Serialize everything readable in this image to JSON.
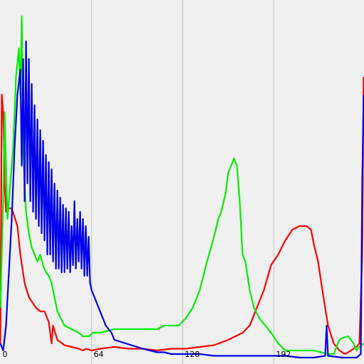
{
  "chart_data": {
    "type": "line",
    "title": "",
    "xlabel": "",
    "ylabel": "",
    "xlim": [
      0,
      255
    ],
    "ylim": [
      0,
      1
    ],
    "grid": true,
    "legend": "none",
    "x_ticks": [
      {
        "value": 0,
        "label": "0"
      },
      {
        "value": 64,
        "label": "64"
      },
      {
        "value": 128,
        "label": "128"
      },
      {
        "value": 192,
        "label": "192"
      }
    ],
    "series": [
      {
        "color": "#ff0000",
        "points": [
          [
            0,
            0.05
          ],
          [
            1,
            0.75
          ],
          [
            2,
            0.7
          ],
          [
            3,
            0.5
          ],
          [
            4,
            0.42
          ],
          [
            6,
            0.43
          ],
          [
            8,
            0.43
          ],
          [
            12,
            0.38
          ],
          [
            14,
            0.3
          ],
          [
            17,
            0.22
          ],
          [
            20,
            0.18
          ],
          [
            25,
            0.15
          ],
          [
            28,
            0.14
          ],
          [
            31,
            0.14
          ],
          [
            34,
            0.11
          ],
          [
            36,
            0.05
          ],
          [
            37,
            0.1
          ],
          [
            40,
            0.06
          ],
          [
            45,
            0.045
          ],
          [
            50,
            0.04
          ],
          [
            55,
            0.035
          ],
          [
            58,
            0.03
          ],
          [
            60,
            0.035
          ],
          [
            64,
            0.03
          ],
          [
            70,
            0.035
          ],
          [
            80,
            0.04
          ],
          [
            90,
            0.035
          ],
          [
            100,
            0.035
          ],
          [
            110,
            0.03
          ],
          [
            120,
            0.035
          ],
          [
            130,
            0.035
          ],
          [
            140,
            0.04
          ],
          [
            150,
            0.045
          ],
          [
            160,
            0.06
          ],
          [
            170,
            0.08
          ],
          [
            175,
            0.1
          ],
          [
            180,
            0.15
          ],
          [
            185,
            0.2
          ],
          [
            190,
            0.27
          ],
          [
            195,
            0.3
          ],
          [
            200,
            0.34
          ],
          [
            205,
            0.37
          ],
          [
            210,
            0.38
          ],
          [
            215,
            0.38
          ],
          [
            218,
            0.37
          ],
          [
            220,
            0.33
          ],
          [
            223,
            0.28
          ],
          [
            226,
            0.2
          ],
          [
            228,
            0.15
          ],
          [
            230,
            0.1
          ],
          [
            234,
            0.05
          ],
          [
            238,
            0.03
          ],
          [
            242,
            0.02
          ],
          [
            246,
            0.03
          ],
          [
            250,
            0.04
          ],
          [
            252,
            0.05
          ],
          [
            254,
            0.3
          ],
          [
            255,
            0.8
          ]
        ]
      },
      {
        "color": "#00ee00",
        "points": [
          [
            0,
            0.15
          ],
          [
            1,
            0.3
          ],
          [
            2,
            0.45
          ],
          [
            3,
            0.7
          ],
          [
            4,
            0.55
          ],
          [
            5,
            0.4
          ],
          [
            7,
            0.5
          ],
          [
            9,
            0.6
          ],
          [
            11,
            0.8
          ],
          [
            13,
            0.88
          ],
          [
            14,
            0.75
          ],
          [
            15,
            0.97
          ],
          [
            16,
            0.6
          ],
          [
            17,
            0.5
          ],
          [
            18,
            0.42
          ],
          [
            20,
            0.36
          ],
          [
            22,
            0.32
          ],
          [
            24,
            0.3
          ],
          [
            26,
            0.28
          ],
          [
            28,
            0.3
          ],
          [
            30,
            0.27
          ],
          [
            32,
            0.25
          ],
          [
            34,
            0.24
          ],
          [
            36,
            0.22
          ],
          [
            38,
            0.18
          ],
          [
            40,
            0.14
          ],
          [
            45,
            0.1
          ],
          [
            50,
            0.09
          ],
          [
            55,
            0.08
          ],
          [
            58,
            0.07
          ],
          [
            62,
            0.07
          ],
          [
            65,
            0.08
          ],
          [
            70,
            0.08
          ],
          [
            80,
            0.09
          ],
          [
            90,
            0.09
          ],
          [
            100,
            0.09
          ],
          [
            110,
            0.09
          ],
          [
            115,
            0.1
          ],
          [
            120,
            0.1
          ],
          [
            125,
            0.1
          ],
          [
            130,
            0.12
          ],
          [
            135,
            0.15
          ],
          [
            140,
            0.2
          ],
          [
            145,
            0.28
          ],
          [
            150,
            0.35
          ],
          [
            153,
            0.4
          ],
          [
            155,
            0.42
          ],
          [
            158,
            0.47
          ],
          [
            160,
            0.53
          ],
          [
            162,
            0.55
          ],
          [
            164,
            0.57
          ],
          [
            166,
            0.55
          ],
          [
            168,
            0.45
          ],
          [
            170,
            0.3
          ],
          [
            172,
            0.28
          ],
          [
            175,
            0.2
          ],
          [
            178,
            0.15
          ],
          [
            182,
            0.12
          ],
          [
            186,
            0.1
          ],
          [
            190,
            0.08
          ],
          [
            195,
            0.05
          ],
          [
            200,
            0.03
          ],
          [
            210,
            0.03
          ],
          [
            220,
            0.03
          ],
          [
            230,
            0.02
          ],
          [
            234,
            0.02
          ],
          [
            238,
            0.06
          ],
          [
            240,
            0.065
          ],
          [
            244,
            0.07
          ],
          [
            248,
            0.05
          ],
          [
            250,
            0.03
          ],
          [
            252,
            0.04
          ],
          [
            255,
            0.05
          ]
        ]
      },
      {
        "color": "#0000ee",
        "points": [
          [
            0,
            0.05
          ],
          [
            2,
            0.03
          ],
          [
            4,
            0.1
          ],
          [
            6,
            0.25
          ],
          [
            8,
            0.4
          ],
          [
            10,
            0.6
          ],
          [
            12,
            0.75
          ],
          [
            14,
            0.82
          ],
          [
            15,
            0.55
          ],
          [
            16,
            0.85
          ],
          [
            17,
            0.45
          ],
          [
            18,
            0.9
          ],
          [
            19,
            0.5
          ],
          [
            20,
            0.85
          ],
          [
            21,
            0.45
          ],
          [
            22,
            0.78
          ],
          [
            23,
            0.42
          ],
          [
            24,
            0.72
          ],
          [
            25,
            0.4
          ],
          [
            26,
            0.68
          ],
          [
            27,
            0.38
          ],
          [
            28,
            0.65
          ],
          [
            29,
            0.36
          ],
          [
            30,
            0.62
          ],
          [
            31,
            0.34
          ],
          [
            32,
            0.58
          ],
          [
            33,
            0.3
          ],
          [
            34,
            0.56
          ],
          [
            35,
            0.3
          ],
          [
            36,
            0.54
          ],
          [
            37,
            0.28
          ],
          [
            38,
            0.5
          ],
          [
            39,
            0.26
          ],
          [
            40,
            0.48
          ],
          [
            41,
            0.26
          ],
          [
            42,
            0.46
          ],
          [
            43,
            0.25
          ],
          [
            44,
            0.44
          ],
          [
            45,
            0.25
          ],
          [
            46,
            0.43
          ],
          [
            47,
            0.26
          ],
          [
            48,
            0.42
          ],
          [
            49,
            0.25
          ],
          [
            50,
            0.38
          ],
          [
            51,
            0.27
          ],
          [
            52,
            0.45
          ],
          [
            53,
            0.26
          ],
          [
            54,
            0.4
          ],
          [
            55,
            0.28
          ],
          [
            56,
            0.42
          ],
          [
            57,
            0.26
          ],
          [
            58,
            0.4
          ],
          [
            59,
            0.24
          ],
          [
            60,
            0.38
          ],
          [
            61,
            0.24
          ],
          [
            62,
            0.35
          ],
          [
            63,
            0.22
          ],
          [
            64,
            0.2
          ],
          [
            66,
            0.18
          ],
          [
            68,
            0.16
          ],
          [
            70,
            0.14
          ],
          [
            72,
            0.12
          ],
          [
            74,
            0.1
          ],
          [
            76,
            0.09
          ],
          [
            78,
            0.08
          ],
          [
            80,
            0.06
          ],
          [
            84,
            0.055
          ],
          [
            88,
            0.05
          ],
          [
            92,
            0.045
          ],
          [
            96,
            0.04
          ],
          [
            100,
            0.035
          ],
          [
            105,
            0.03
          ],
          [
            110,
            0.025
          ],
          [
            115,
            0.025
          ],
          [
            120,
            0.02
          ],
          [
            125,
            0.02
          ],
          [
            130,
            0.02
          ],
          [
            140,
            0.02
          ],
          [
            150,
            0.015
          ],
          [
            160,
            0.015
          ],
          [
            170,
            0.015
          ],
          [
            180,
            0.015
          ],
          [
            190,
            0.015
          ],
          [
            200,
            0.015
          ],
          [
            210,
            0.01
          ],
          [
            220,
            0.01
          ],
          [
            228,
            0.015
          ],
          [
            229,
            0.1
          ],
          [
            230,
            0.015
          ],
          [
            240,
            0.01
          ],
          [
            250,
            0.01
          ],
          [
            253,
            0.02
          ],
          [
            254,
            0.5
          ],
          [
            255,
            0.75
          ]
        ]
      }
    ]
  }
}
